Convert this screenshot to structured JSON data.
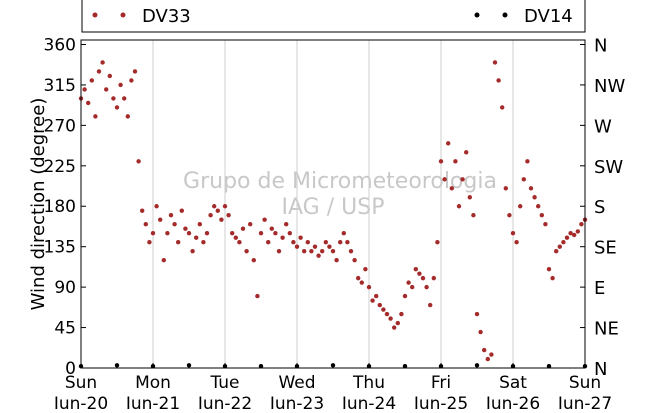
{
  "chart_data": {
    "type": "scatter",
    "title": "",
    "ylabel": "Wind direction (degree)",
    "xlabel": "",
    "ylim": [
      0,
      365
    ],
    "xlim": [
      0,
      7
    ],
    "grid": "vertical lines at each day",
    "legend_placement": "top",
    "watermark": [
      "Grupo de Micrometeorologia",
      "IAG / USP"
    ],
    "y_ticks": [
      0,
      45,
      90,
      135,
      180,
      225,
      270,
      315,
      360
    ],
    "y_ticks_right": [
      "N",
      "NE",
      "E",
      "SE",
      "S",
      "SW",
      "W",
      "NW",
      "N"
    ],
    "x_ticks": [
      {
        "x": 0,
        "day": "Sun",
        "date": "Jun-20"
      },
      {
        "x": 1,
        "day": "Mon",
        "date": "Jun-21"
      },
      {
        "x": 2,
        "day": "Tue",
        "date": "Jun-22"
      },
      {
        "x": 3,
        "day": "Wed",
        "date": "Jun-23"
      },
      {
        "x": 4,
        "day": "Thu",
        "date": "Jun-24"
      },
      {
        "x": 5,
        "day": "Fri",
        "date": "Jun-25"
      },
      {
        "x": 6,
        "day": "Sat",
        "date": "Jun-26"
      },
      {
        "x": 7,
        "day": "Sun",
        "date": "Jun-27"
      }
    ],
    "series": [
      {
        "name": "DV33",
        "color": "#a52a2a",
        "values": [
          [
            0.0,
            300
          ],
          [
            0.05,
            310
          ],
          [
            0.1,
            295
          ],
          [
            0.15,
            320
          ],
          [
            0.2,
            280
          ],
          [
            0.25,
            330
          ],
          [
            0.3,
            340
          ],
          [
            0.35,
            310
          ],
          [
            0.4,
            325
          ],
          [
            0.45,
            300
          ],
          [
            0.5,
            290
          ],
          [
            0.55,
            315
          ],
          [
            0.6,
            300
          ],
          [
            0.65,
            280
          ],
          [
            0.7,
            320
          ],
          [
            0.75,
            330
          ],
          [
            0.8,
            230
          ],
          [
            0.85,
            175
          ],
          [
            0.9,
            160
          ],
          [
            0.95,
            140
          ],
          [
            1.0,
            150
          ],
          [
            1.05,
            180
          ],
          [
            1.1,
            165
          ],
          [
            1.15,
            120
          ],
          [
            1.2,
            150
          ],
          [
            1.25,
            170
          ],
          [
            1.3,
            160
          ],
          [
            1.35,
            140
          ],
          [
            1.4,
            175
          ],
          [
            1.45,
            155
          ],
          [
            1.5,
            150
          ],
          [
            1.55,
            130
          ],
          [
            1.6,
            145
          ],
          [
            1.65,
            160
          ],
          [
            1.7,
            140
          ],
          [
            1.75,
            150
          ],
          [
            1.8,
            170
          ],
          [
            1.85,
            180
          ],
          [
            1.9,
            175
          ],
          [
            1.95,
            165
          ],
          [
            2.0,
            180
          ],
          [
            2.05,
            170
          ],
          [
            2.1,
            150
          ],
          [
            2.15,
            145
          ],
          [
            2.2,
            140
          ],
          [
            2.25,
            155
          ],
          [
            2.3,
            130
          ],
          [
            2.35,
            160
          ],
          [
            2.4,
            120
          ],
          [
            2.45,
            80
          ],
          [
            2.5,
            150
          ],
          [
            2.55,
            165
          ],
          [
            2.6,
            140
          ],
          [
            2.65,
            155
          ],
          [
            2.7,
            150
          ],
          [
            2.75,
            130
          ],
          [
            2.8,
            145
          ],
          [
            2.85,
            160
          ],
          [
            2.9,
            150
          ],
          [
            2.95,
            140
          ],
          [
            3.0,
            135
          ],
          [
            3.05,
            145
          ],
          [
            3.1,
            130
          ],
          [
            3.15,
            140
          ],
          [
            3.2,
            130
          ],
          [
            3.25,
            135
          ],
          [
            3.3,
            125
          ],
          [
            3.35,
            130
          ],
          [
            3.4,
            140
          ],
          [
            3.45,
            135
          ],
          [
            3.5,
            130
          ],
          [
            3.55,
            120
          ],
          [
            3.6,
            140
          ],
          [
            3.65,
            150
          ],
          [
            3.7,
            140
          ],
          [
            3.75,
            130
          ],
          [
            3.8,
            120
          ],
          [
            3.85,
            100
          ],
          [
            3.9,
            95
          ],
          [
            3.95,
            110
          ],
          [
            4.0,
            90
          ],
          [
            4.05,
            75
          ],
          [
            4.1,
            80
          ],
          [
            4.15,
            70
          ],
          [
            4.2,
            65
          ],
          [
            4.25,
            60
          ],
          [
            4.3,
            55
          ],
          [
            4.35,
            45
          ],
          [
            4.4,
            50
          ],
          [
            4.45,
            60
          ],
          [
            4.5,
            80
          ],
          [
            4.55,
            95
          ],
          [
            4.6,
            90
          ],
          [
            4.65,
            110
          ],
          [
            4.7,
            105
          ],
          [
            4.75,
            100
          ],
          [
            4.8,
            90
          ],
          [
            4.85,
            70
          ],
          [
            4.9,
            100
          ],
          [
            4.95,
            140
          ],
          [
            5.0,
            230
          ],
          [
            5.05,
            210
          ],
          [
            5.1,
            250
          ],
          [
            5.15,
            200
          ],
          [
            5.2,
            230
          ],
          [
            5.25,
            180
          ],
          [
            5.3,
            210
          ],
          [
            5.35,
            240
          ],
          [
            5.4,
            190
          ],
          [
            5.45,
            170
          ],
          [
            5.5,
            60
          ],
          [
            5.55,
            40
          ],
          [
            5.6,
            20
          ],
          [
            5.65,
            10
          ],
          [
            5.7,
            15
          ],
          [
            5.75,
            340
          ],
          [
            5.8,
            320
          ],
          [
            5.85,
            290
          ],
          [
            5.9,
            200
          ],
          [
            5.95,
            170
          ],
          [
            6.0,
            150
          ],
          [
            6.05,
            140
          ],
          [
            6.1,
            180
          ],
          [
            6.15,
            210
          ],
          [
            6.2,
            230
          ],
          [
            6.25,
            200
          ],
          [
            6.3,
            190
          ],
          [
            6.35,
            180
          ],
          [
            6.4,
            170
          ],
          [
            6.45,
            160
          ],
          [
            6.5,
            110
          ],
          [
            6.55,
            100
          ],
          [
            6.6,
            130
          ],
          [
            6.65,
            135
          ],
          [
            6.7,
            140
          ],
          [
            6.75,
            145
          ],
          [
            6.8,
            150
          ],
          [
            6.85,
            148
          ],
          [
            6.9,
            152
          ],
          [
            6.95,
            160
          ],
          [
            7.0,
            165
          ]
        ]
      },
      {
        "name": "DV14",
        "color": "#000000",
        "values": [
          [
            0.0,
            2
          ],
          [
            0.5,
            3
          ],
          [
            1.0,
            2
          ],
          [
            1.5,
            3
          ],
          [
            2.0,
            2
          ],
          [
            2.5,
            2
          ],
          [
            3.0,
            2
          ],
          [
            3.5,
            3
          ],
          [
            4.0,
            2
          ],
          [
            4.5,
            2
          ],
          [
            5.0,
            2
          ],
          [
            5.5,
            3
          ],
          [
            6.0,
            2
          ],
          [
            6.5,
            2
          ],
          [
            7.0,
            2
          ]
        ]
      }
    ]
  }
}
